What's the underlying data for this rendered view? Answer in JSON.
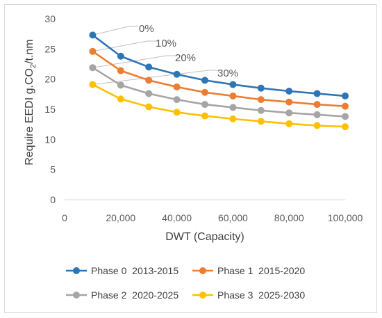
{
  "chart_data": {
    "type": "line",
    "xlabel": "DWT (Capacity)",
    "ylabel_main": "Require EEDI  g.CO",
    "ylabel_sub": "2",
    "ylabel_tail": "/t.nm",
    "xlim": [
      0,
      100000
    ],
    "ylim": [
      0,
      30
    ],
    "x_ticks": [
      0,
      20000,
      40000,
      60000,
      80000,
      100000
    ],
    "x_tick_labels": [
      "0",
      "20,000",
      "40,000",
      "60,000",
      "80,000",
      "100,000"
    ],
    "y_ticks": [
      0,
      5,
      10,
      15,
      20,
      25,
      30
    ],
    "y_tick_labels": [
      "0",
      "5",
      "10",
      "15",
      "20",
      "25",
      "30"
    ],
    "grid": false,
    "legend_position": "bottom",
    "x": [
      10000,
      20000,
      30000,
      40000,
      50000,
      60000,
      70000,
      80000,
      90000,
      100000
    ],
    "series": [
      {
        "name": "Phase 0  2013-2015",
        "color": "#2e75b6",
        "values": [
          27.3,
          23.8,
          22.0,
          20.8,
          19.8,
          19.1,
          18.5,
          18.0,
          17.6,
          17.2
        ]
      },
      {
        "name": "Phase 1  2015-2020",
        "color": "#ed7d31",
        "values": [
          24.6,
          21.4,
          19.8,
          18.7,
          17.8,
          17.2,
          16.6,
          16.2,
          15.8,
          15.5
        ]
      },
      {
        "name": "Phase 2  2020-2025",
        "color": "#a5a5a5",
        "values": [
          21.9,
          19.0,
          17.6,
          16.6,
          15.8,
          15.3,
          14.8,
          14.4,
          14.1,
          13.8
        ]
      },
      {
        "name": "Phase 3  2025-2030",
        "color": "#ffc000",
        "values": [
          19.1,
          16.7,
          15.4,
          14.5,
          13.9,
          13.4,
          13.0,
          12.6,
          12.3,
          12.1
        ]
      }
    ],
    "annotations": [
      {
        "text": "0%",
        "series": 0
      },
      {
        "text": "10%",
        "series": 1
      },
      {
        "text": "20%",
        "series": 2
      },
      {
        "text": "30%",
        "series": 3
      }
    ]
  }
}
